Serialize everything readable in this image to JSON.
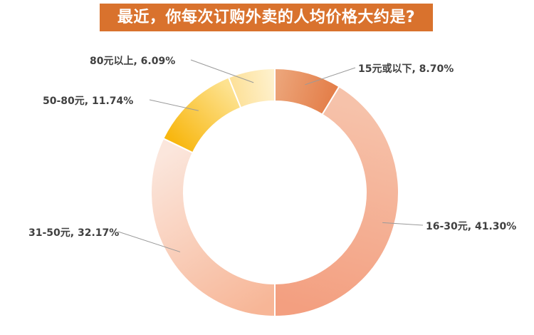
{
  "chart_data": {
    "type": "pie",
    "title": "最近，你每次订购外卖的人均价格大约是?",
    "donut": true,
    "start": "top",
    "direction": "clockwise",
    "slices": [
      {
        "label": "15元或以下",
        "value": 8.7,
        "display": "15元或以下, 8.70%",
        "color": "#ec9e6f",
        "gradient": [
          "#eca57a",
          "#e47f4a"
        ]
      },
      {
        "label": "16-30元",
        "value": 41.3,
        "display": "16-30元, 41.30%",
        "color": "#f5a585",
        "gradient": [
          "#f6c2aa",
          "#f39f80"
        ]
      },
      {
        "label": "31-50元",
        "value": 32.17,
        "display": "31-50元, 32.17%",
        "color": "#f6c3a8",
        "gradient": [
          "#f7b697",
          "#fbe6dc"
        ]
      },
      {
        "label": "50-80元",
        "value": 11.74,
        "display": "50-80元, 11.74%",
        "color": "#fbc43a",
        "gradient": [
          "#f8b710",
          "#fde290"
        ]
      },
      {
        "label": "80元以上",
        "value": 6.09,
        "display": "80元以上, 6.09%",
        "color": "#fde6a2",
        "gradient": [
          "#fde19a",
          "#fef1cd"
        ]
      }
    ]
  }
}
